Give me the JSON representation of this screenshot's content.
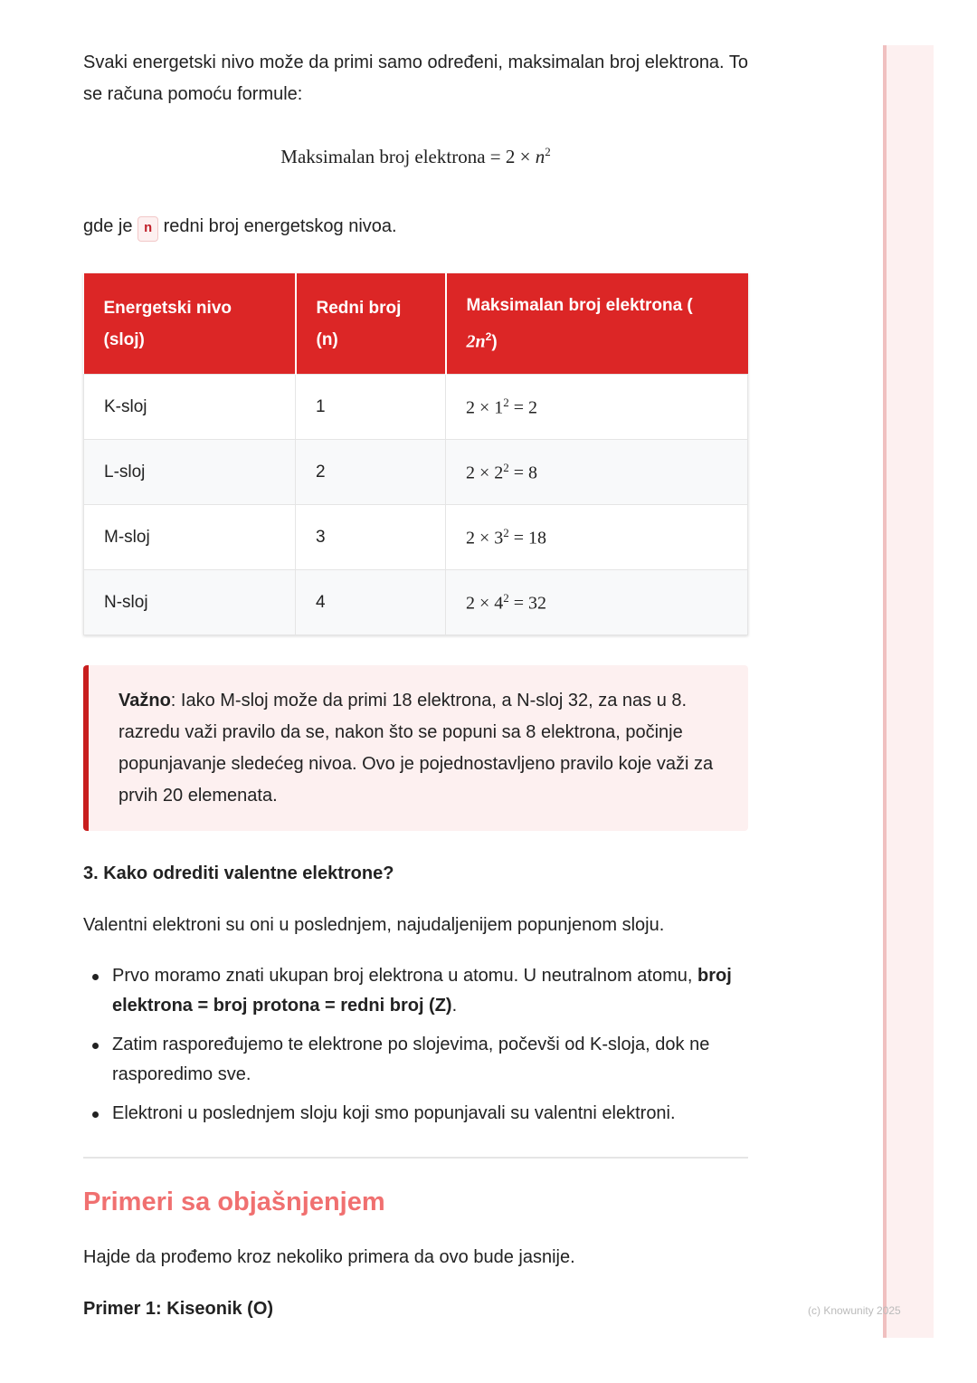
{
  "intro": "Svaki energetski nivo može da primi samo određeni, maksimalan broj elektrona. To se računa pomoću formule:",
  "formula": {
    "lhs": "Maksimalan broj elektrona = 2 × ",
    "var": "n",
    "exp": "2"
  },
  "where": {
    "pre": "gde je ",
    "code": "n",
    "post": " redni broj energetskog nivoa."
  },
  "table": {
    "headers": [
      "Energetski nivo (sloj)",
      "Redni broj (n)",
      "Maksimalan broj elektrona ("
    ],
    "header_math": "2n",
    "header_close": ")",
    "rows": [
      {
        "sloj": "K-sloj",
        "n": "1",
        "base": "2 × 1",
        "exp": "2",
        "res": " = 2"
      },
      {
        "sloj": "L-sloj",
        "n": "2",
        "base": "2 × 2",
        "exp": "2",
        "res": " = 8"
      },
      {
        "sloj": "M-sloj",
        "n": "3",
        "base": "2 × 3",
        "exp": "2",
        "res": " = 18"
      },
      {
        "sloj": "N-sloj",
        "n": "4",
        "base": "2 × 4",
        "exp": "2",
        "res": " = 32"
      }
    ]
  },
  "callout": {
    "bold": "Važno",
    "text": ": Iako M-sloj može da primi 18 elektrona, a N-sloj 32, za nas u 8. razredu važi pravilo da se, nakon što se popuni sa 8 elektrona, počinje popunjavanje sledećeg nivoa. Ovo je pojednostavljeno pravilo koje važi za prvih 20 elemenata."
  },
  "section3": {
    "title": "3. Kako odrediti valentne elektrone?",
    "para": "Valentni elektroni su oni u poslednjem, najudaljenijem popunjenom sloju.",
    "bullets": [
      {
        "text": "Prvo moramo znati ukupan broj elektrona u atomu. U neutralnom atomu, ",
        "bold": "broj elektrona = broj protona = redni broj (Z)",
        "after": "."
      },
      {
        "text": "Zatim raspoređujemo te elektrone po slojevima, počevši od K-sloja, dok ne rasporedimo sve."
      },
      {
        "text": "Elektroni u poslednjem sloju koji smo popunjavali su valentni elektroni."
      }
    ]
  },
  "examples": {
    "title": "Primeri sa objašnjenjem",
    "para": "Hajde da prođemo kroz nekoliko primera da ovo bude jasnije.",
    "primer1": "Primer 1: Kiseonik (O)"
  },
  "watermark": "(c) Knowunity 2025",
  "colors": {
    "accent": "#dc2626",
    "heading": "#f07070",
    "callout_bg": "#fdf0f0"
  }
}
